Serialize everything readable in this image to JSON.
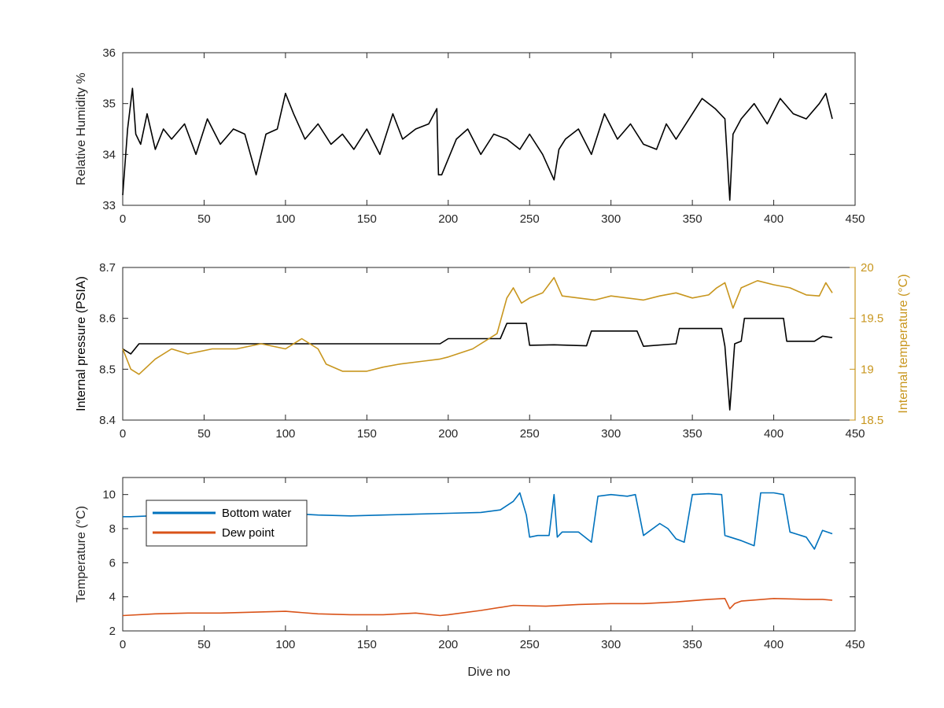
{
  "chart_data": [
    {
      "type": "line",
      "title": "",
      "xlabel": "",
      "ylabel": "Relative Humidity %",
      "xlim": [
        0,
        450
      ],
      "ylim": [
        33,
        36
      ],
      "xticks": [
        "0",
        "50",
        "100",
        "150",
        "200",
        "250",
        "300",
        "350",
        "400",
        "450"
      ],
      "yticks": [
        "33",
        "34",
        "35",
        "36"
      ],
      "grid": false,
      "series": [
        {
          "color": "#000000",
          "x": [
            0,
            3,
            6,
            8,
            11,
            15,
            20,
            25,
            30,
            38,
            45,
            52,
            60,
            68,
            75,
            82,
            88,
            95,
            100,
            105,
            112,
            120,
            128,
            135,
            142,
            150,
            158,
            166,
            172,
            180,
            188,
            193,
            194,
            196,
            205,
            212,
            220,
            228,
            236,
            244,
            250,
            258,
            265,
            268,
            272,
            280,
            288,
            296,
            304,
            312,
            320,
            328,
            334,
            340,
            348,
            356,
            364,
            370,
            373,
            375,
            380,
            388,
            396,
            404,
            412,
            420,
            428,
            432,
            436
          ],
          "y": [
            33.2,
            34.5,
            35.3,
            34.4,
            34.2,
            34.8,
            34.1,
            34.5,
            34.3,
            34.6,
            34.0,
            34.7,
            34.2,
            34.5,
            34.4,
            33.6,
            34.4,
            34.5,
            35.2,
            34.8,
            34.3,
            34.6,
            34.2,
            34.4,
            34.1,
            34.5,
            34.0,
            34.8,
            34.3,
            34.5,
            34.6,
            34.9,
            33.6,
            33.6,
            34.3,
            34.5,
            34.0,
            34.4,
            34.3,
            34.1,
            34.4,
            34.0,
            33.5,
            34.1,
            34.3,
            34.5,
            34.0,
            34.8,
            34.3,
            34.6,
            34.2,
            34.1,
            34.6,
            34.3,
            34.7,
            35.1,
            34.9,
            34.7,
            33.1,
            34.4,
            34.7,
            35.0,
            34.6,
            35.1,
            34.8,
            34.7,
            35.0,
            35.2,
            34.7
          ]
        }
      ]
    },
    {
      "type": "line",
      "title": "",
      "xlabel": "",
      "ylabel": "Internal pressure (PSIA)",
      "ylabel_right": "Internal temperature (°C)",
      "xlim": [
        0,
        450
      ],
      "ylim": [
        8.4,
        8.7
      ],
      "ylim_right": [
        18.5,
        20
      ],
      "xticks": [
        "0",
        "50",
        "100",
        "150",
        "200",
        "250",
        "300",
        "350",
        "400",
        "450"
      ],
      "yticks": [
        "8.4",
        "8.5",
        "8.6",
        "8.7"
      ],
      "yticks_right": [
        "18.5",
        "19",
        "19.5",
        "20"
      ],
      "grid": false,
      "series": [
        {
          "color": "#000000",
          "axis": "left",
          "x": [
            0,
            5,
            10,
            30,
            60,
            90,
            120,
            150,
            160,
            180,
            195,
            200,
            232,
            236,
            248,
            250,
            265,
            285,
            288,
            316,
            320,
            340,
            342,
            368,
            370,
            373,
            376,
            380,
            382,
            406,
            408,
            425,
            430,
            436
          ],
          "y": [
            8.54,
            8.53,
            8.55,
            8.55,
            8.55,
            8.55,
            8.55,
            8.55,
            8.55,
            8.55,
            8.55,
            8.56,
            8.56,
            8.59,
            8.59,
            8.547,
            8.548,
            8.546,
            8.575,
            8.575,
            8.545,
            8.55,
            8.58,
            8.58,
            8.545,
            8.42,
            8.55,
            8.555,
            8.6,
            8.6,
            8.555,
            8.555,
            8.565,
            8.562
          ]
        },
        {
          "color": "#C8961E",
          "axis": "right",
          "x": [
            0,
            5,
            10,
            20,
            30,
            40,
            55,
            70,
            85,
            100,
            110,
            120,
            125,
            135,
            150,
            160,
            170,
            185,
            195,
            200,
            215,
            230,
            236,
            240,
            245,
            250,
            258,
            265,
            270,
            280,
            290,
            300,
            310,
            320,
            330,
            340,
            350,
            360,
            365,
            370,
            375,
            380,
            390,
            400,
            410,
            420,
            428,
            432,
            436
          ],
          "y": [
            19.2,
            19.0,
            18.95,
            19.1,
            19.2,
            19.15,
            19.2,
            19.2,
            19.25,
            19.2,
            19.3,
            19.2,
            19.05,
            18.98,
            18.98,
            19.02,
            19.05,
            19.08,
            19.1,
            19.12,
            19.2,
            19.35,
            19.7,
            19.8,
            19.65,
            19.7,
            19.75,
            19.9,
            19.72,
            19.7,
            19.68,
            19.72,
            19.7,
            19.68,
            19.72,
            19.75,
            19.7,
            19.73,
            19.8,
            19.85,
            19.6,
            19.8,
            19.87,
            19.83,
            19.8,
            19.73,
            19.72,
            19.85,
            19.75
          ]
        }
      ]
    },
    {
      "type": "line",
      "title": "",
      "xlabel": "Dive no",
      "ylabel": "Temperature (°C)",
      "xlim": [
        0,
        450
      ],
      "ylim": [
        2,
        11
      ],
      "xticks": [
        "0",
        "50",
        "100",
        "150",
        "200",
        "250",
        "300",
        "350",
        "400",
        "450"
      ],
      "yticks": [
        "2",
        "4",
        "6",
        "8",
        "10"
      ],
      "grid": false,
      "legend": "top-left",
      "series": [
        {
          "name": "Bottom water",
          "color": "#0072BD",
          "x": [
            0,
            5,
            30,
            60,
            90,
            100,
            120,
            140,
            160,
            180,
            200,
            220,
            232,
            240,
            244,
            248,
            250,
            255,
            262,
            265,
            267,
            270,
            280,
            288,
            292,
            300,
            310,
            315,
            320,
            330,
            335,
            340,
            345,
            350,
            360,
            368,
            370,
            380,
            388,
            392,
            400,
            406,
            410,
            420,
            425,
            430,
            436
          ],
          "y": [
            8.7,
            8.7,
            8.8,
            8.9,
            8.85,
            8.9,
            8.8,
            8.75,
            8.8,
            8.85,
            8.9,
            8.95,
            9.1,
            9.6,
            10.1,
            8.8,
            7.5,
            7.6,
            7.6,
            10.0,
            7.5,
            7.8,
            7.8,
            7.2,
            9.9,
            10.0,
            9.9,
            10.0,
            7.6,
            8.3,
            8.0,
            7.4,
            7.2,
            10.0,
            10.05,
            10.0,
            7.6,
            7.3,
            7.0,
            10.1,
            10.1,
            10.0,
            7.8,
            7.5,
            6.8,
            7.9,
            7.7
          ]
        },
        {
          "name": "Dew point",
          "color": "#D95319",
          "x": [
            0,
            20,
            40,
            60,
            80,
            100,
            120,
            140,
            160,
            180,
            195,
            200,
            220,
            240,
            260,
            280,
            300,
            320,
            340,
            360,
            370,
            373,
            376,
            380,
            400,
            420,
            430,
            436
          ],
          "y": [
            2.9,
            3.0,
            3.05,
            3.05,
            3.1,
            3.15,
            3.0,
            2.95,
            2.95,
            3.05,
            2.9,
            2.95,
            3.2,
            3.5,
            3.45,
            3.55,
            3.6,
            3.6,
            3.7,
            3.85,
            3.9,
            3.3,
            3.6,
            3.75,
            3.9,
            3.85,
            3.85,
            3.8
          ]
        }
      ]
    }
  ]
}
